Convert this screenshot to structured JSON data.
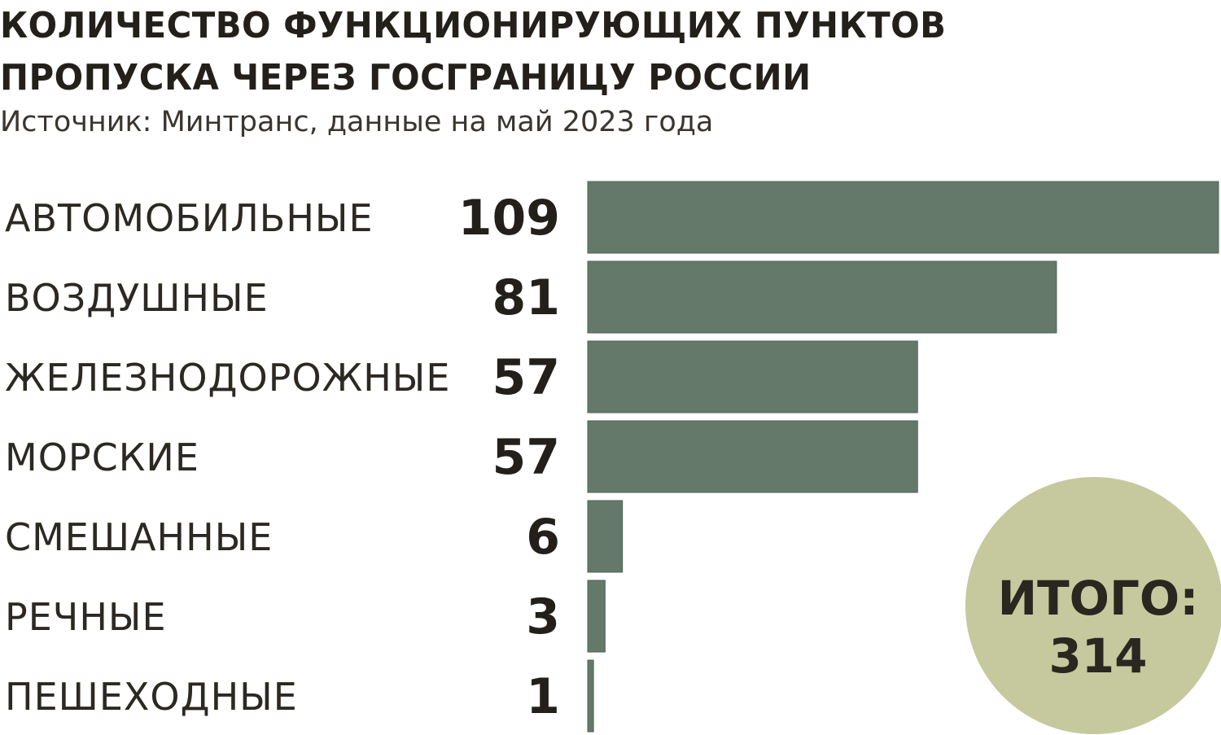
{
  "title_line1": "КОЛИЧЕСТВО ФУНКЦИОНИРУЮЩИХ ПУНКТОВ",
  "title_line2": "ПРОПУСКА ЧЕРЕЗ ГОСГРАНИЦУ РОССИИ",
  "subtitle": "Источник: Минтранс, данные на май 2023 года",
  "total": {
    "label": "ИТОГО:",
    "value": "314"
  },
  "colors": {
    "bar": "#64796a",
    "bar_outline": "#4f6357",
    "circle": "#c5c99d",
    "text": "#231f1a"
  },
  "chart_data": {
    "type": "bar",
    "orientation": "horizontal",
    "categories": [
      "АВТОМОБИЛЬНЫЕ",
      "ВОЗДУШНЫЕ",
      "ЖЕЛЕЗНОДОРОЖНЫЕ",
      "МОРСКИЕ",
      "СМЕШАННЫЕ",
      "РЕЧНЫЕ",
      "ПЕШЕХОДНЫЕ"
    ],
    "values": [
      109,
      81,
      57,
      57,
      6,
      3,
      1
    ],
    "value_labels": [
      "109",
      "81",
      "57",
      "57",
      "6",
      "3",
      "1"
    ],
    "title": "КОЛИЧЕСТВО ФУНКЦИОНИРУЮЩИХ ПУНКТОВ ПРОПУСКА ЧЕРЕЗ ГОСГРАНИЦУ РОССИИ",
    "subtitle": "Источник: Минтранс, данные на май 2023 года",
    "xlim": [
      0,
      109
    ],
    "grid": false,
    "legend": false
  }
}
